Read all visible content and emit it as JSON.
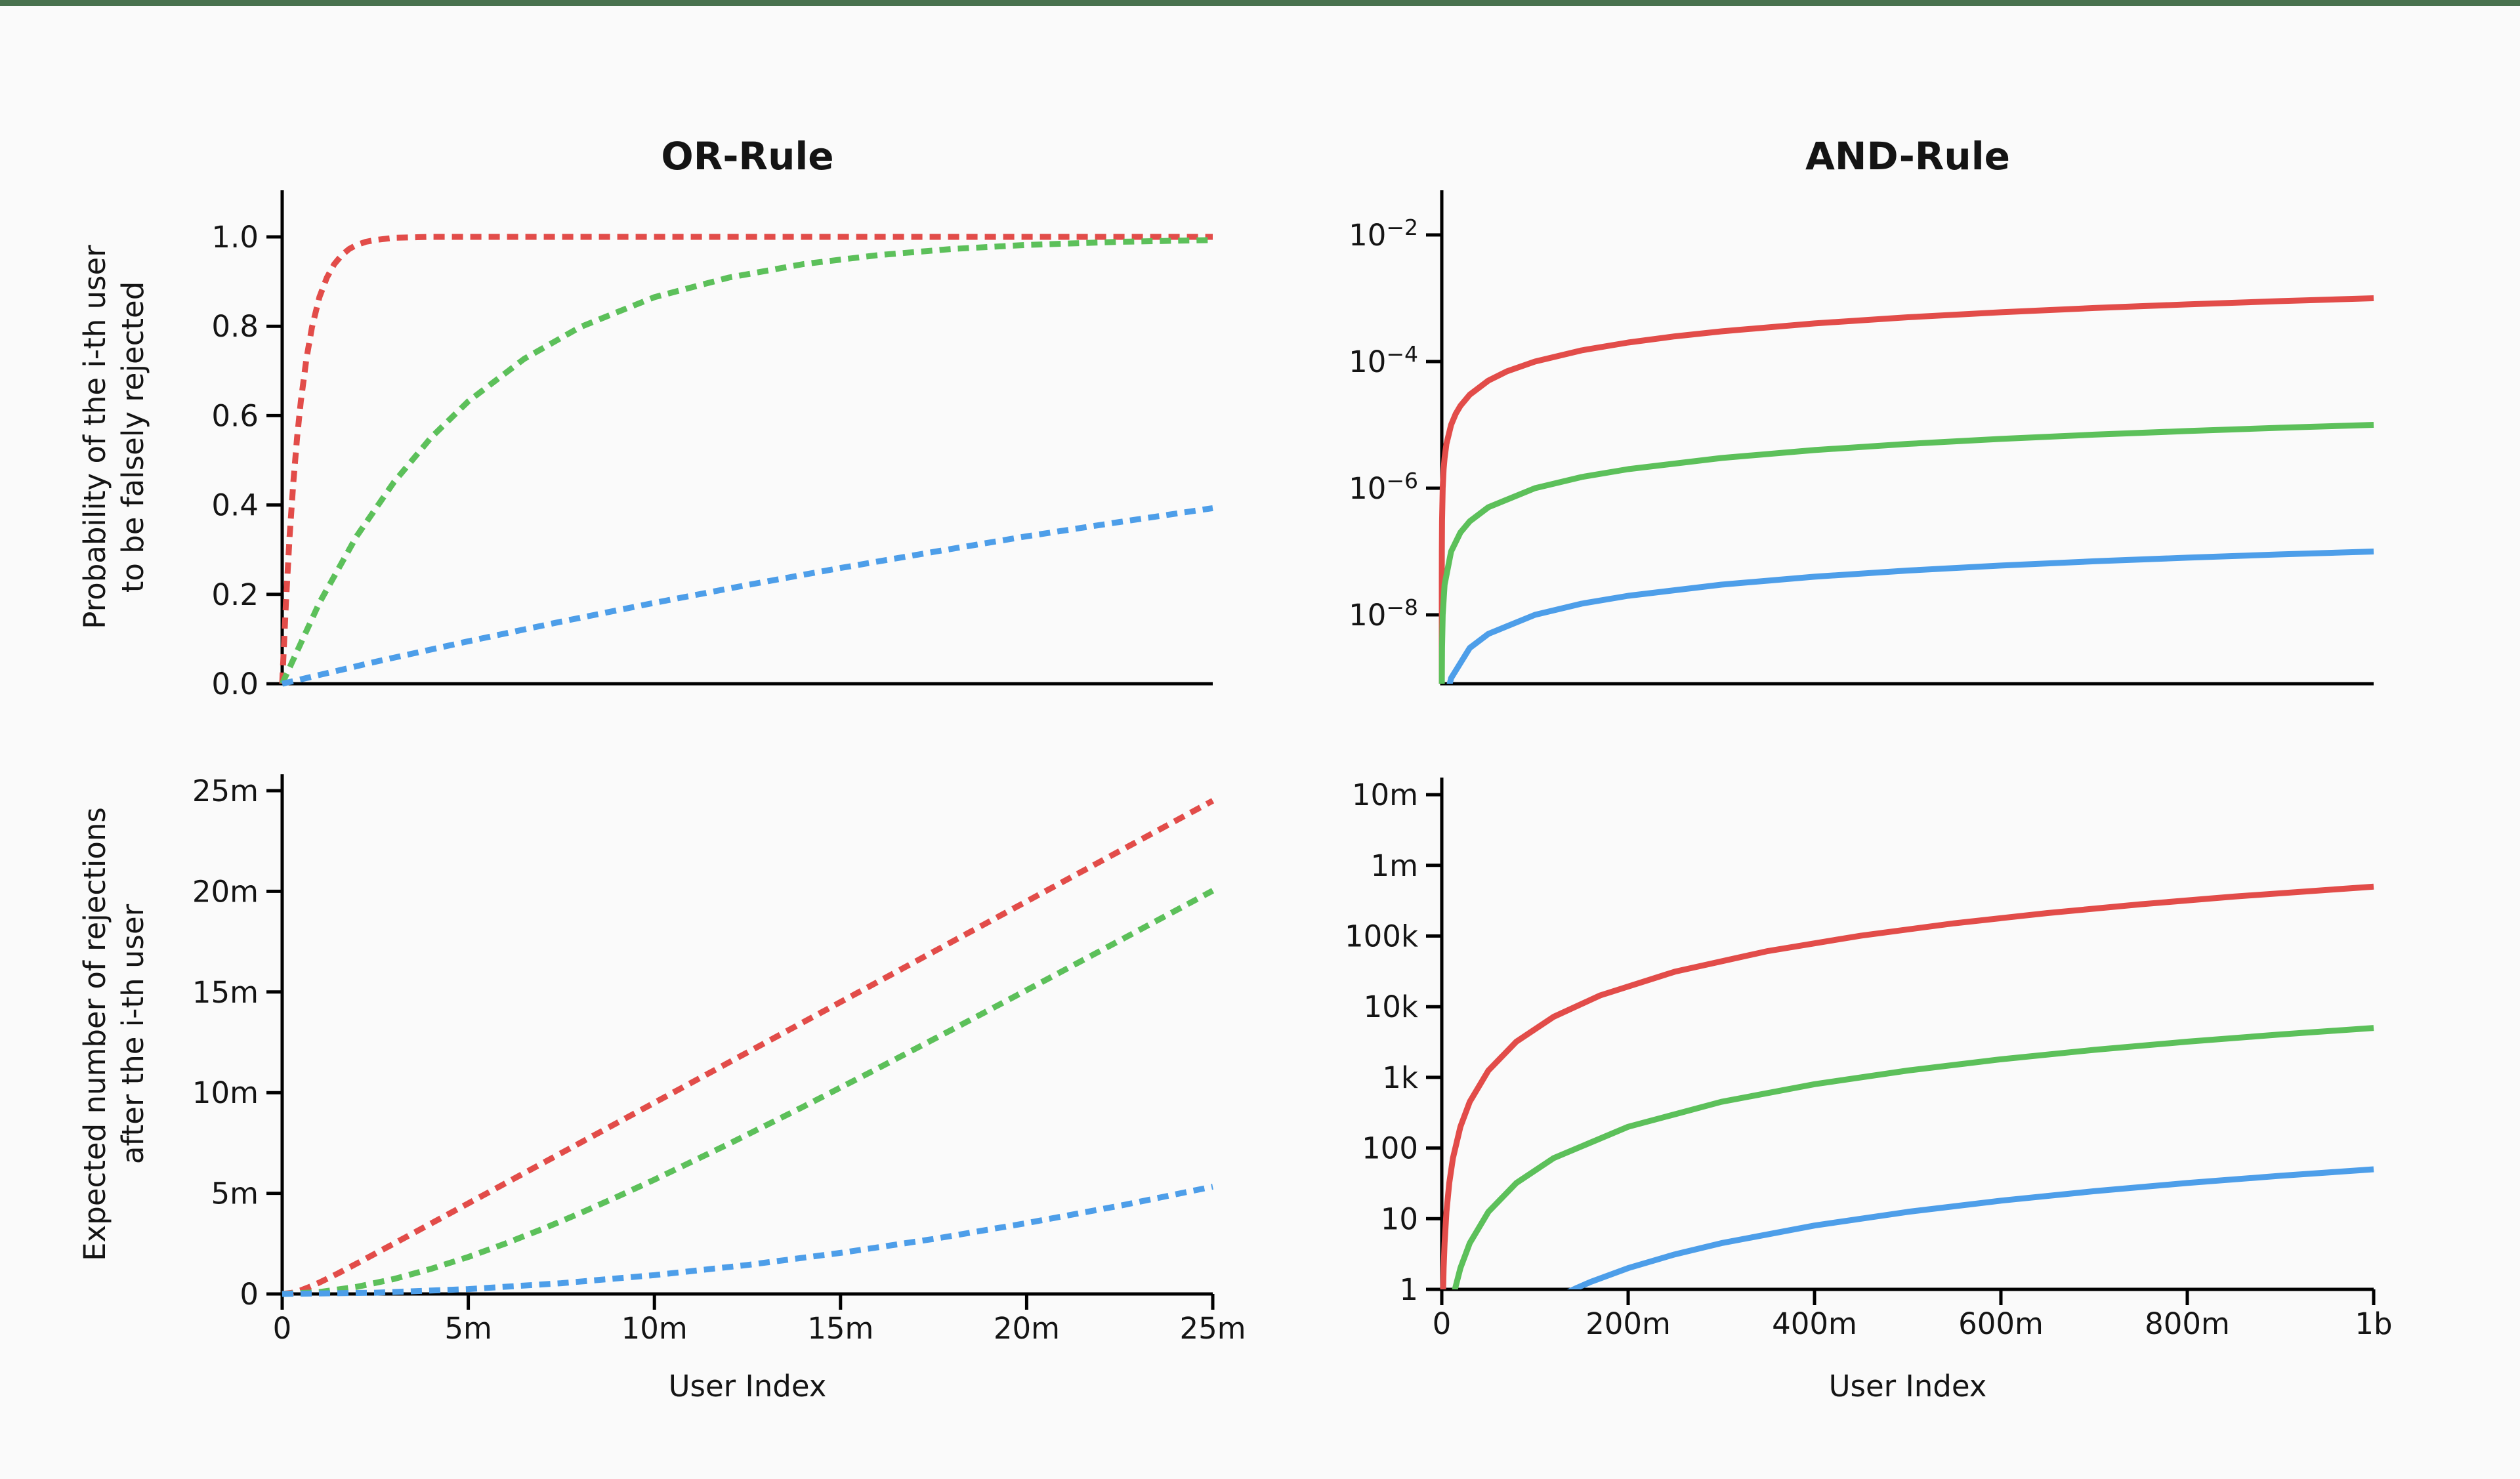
{
  "page": {
    "background_color": "#fafafa",
    "accent_bar_color": "#49724e",
    "axis_color": "#000000",
    "text_color": "#141414"
  },
  "colors": {
    "red": "#e24c49",
    "green": "#5cc05a",
    "blue": "#4d9ee9"
  },
  "chart_data": [
    {
      "id": "or-probability",
      "type": "line",
      "title": "OR-Rule",
      "xlabel": "",
      "ylabel_lines": [
        "Probability of the i-th user",
        "to be falsely rejected"
      ],
      "line_style": "dashed",
      "x_axis": {
        "scale": "linear",
        "min_users": 0,
        "max_users": 25000000,
        "unit": "millions of users",
        "tick_labels": []
      },
      "y_axis": {
        "scale": "linear",
        "min": 0.0,
        "max": 1.0,
        "tick_labels": [
          "1.0",
          "0.8",
          "0.6",
          "0.4",
          "0.2",
          "0.0"
        ],
        "tick_values": [
          1.0,
          0.8,
          0.6,
          0.4,
          0.2,
          0.0
        ]
      },
      "series": [
        {
          "name": "red",
          "color": "#e24c49",
          "points": [
            [
              0,
              0
            ],
            [
              0.1,
              0.181
            ],
            [
              0.2,
              0.33
            ],
            [
              0.3,
              0.451
            ],
            [
              0.4,
              0.551
            ],
            [
              0.5,
              0.632
            ],
            [
              0.65,
              0.727
            ],
            [
              0.8,
              0.798
            ],
            [
              1,
              0.865
            ],
            [
              1.2,
              0.909
            ],
            [
              1.4,
              0.939
            ],
            [
              1.6,
              0.959
            ],
            [
              1.8,
              0.973
            ],
            [
              2,
              0.982
            ],
            [
              2.25,
              0.989
            ],
            [
              2.5,
              0.993
            ],
            [
              3,
              0.998
            ],
            [
              3.5,
              0.999
            ],
            [
              4,
              1
            ],
            [
              25,
              1
            ]
          ]
        },
        {
          "name": "green",
          "color": "#5cc05a",
          "points": [
            [
              0,
              0
            ],
            [
              1,
              0.181
            ],
            [
              2,
              0.33
            ],
            [
              3,
              0.451
            ],
            [
              4,
              0.551
            ],
            [
              5,
              0.632
            ],
            [
              6.5,
              0.727
            ],
            [
              8,
              0.798
            ],
            [
              10,
              0.865
            ],
            [
              12,
              0.909
            ],
            [
              14,
              0.939
            ],
            [
              16,
              0.959
            ],
            [
              18,
              0.973
            ],
            [
              20,
              0.982
            ],
            [
              22.5,
              0.989
            ],
            [
              25,
              0.993
            ]
          ]
        },
        {
          "name": "blue",
          "color": "#4d9ee9",
          "points": [
            [
              0,
              0
            ],
            [
              2.5,
              0.049
            ],
            [
              5,
              0.095
            ],
            [
              7.5,
              0.139
            ],
            [
              10,
              0.181
            ],
            [
              12.5,
              0.221
            ],
            [
              15,
              0.259
            ],
            [
              17.5,
              0.295
            ],
            [
              20,
              0.33
            ],
            [
              22.5,
              0.362
            ],
            [
              25,
              0.393
            ]
          ]
        }
      ]
    },
    {
      "id": "and-probability",
      "type": "line",
      "title": "AND-Rule",
      "xlabel": "",
      "ylabel_lines": [],
      "line_style": "solid",
      "x_axis": {
        "scale": "linear",
        "min_users": 0,
        "max_users": 1000000000,
        "unit": "millions of users",
        "tick_labels": []
      },
      "y_axis": {
        "scale": "log",
        "tick_base": "10",
        "tick_exponents": [
          "−2",
          "−4",
          "−6",
          "−8"
        ]
      },
      "series": [
        {
          "name": "red",
          "color": "#e24c49",
          "points": [
            [
              0.0005,
              5e-10
            ],
            [
              0.001,
              1e-09
            ],
            [
              0.003,
              3e-09
            ],
            [
              0.01,
              1e-08
            ],
            [
              0.03,
              3e-08
            ],
            [
              0.1,
              1e-07
            ],
            [
              0.3,
              3e-07
            ],
            [
              1,
              1e-06
            ],
            [
              2,
              2e-06
            ],
            [
              3,
              3e-06
            ],
            [
              5,
              5e-06
            ],
            [
              10,
              1e-05
            ],
            [
              15,
              1.5e-05
            ],
            [
              20,
              2e-05
            ],
            [
              30,
              3e-05
            ],
            [
              50,
              5e-05
            ],
            [
              70,
              7e-05
            ],
            [
              100,
              0.0001
            ],
            [
              150,
              0.00015
            ],
            [
              200,
              0.0002
            ],
            [
              250,
              0.00025
            ],
            [
              300,
              0.0003
            ],
            [
              400,
              0.0004
            ],
            [
              500,
              0.0005
            ],
            [
              600,
              0.0006
            ],
            [
              700,
              0.0007
            ],
            [
              800,
              0.0008
            ],
            [
              900,
              0.0009
            ],
            [
              1000,
              0.001
            ]
          ]
        },
        {
          "name": "green",
          "color": "#5cc05a",
          "points": [
            [
              0.05,
              5e-10
            ],
            [
              0.1,
              1e-09
            ],
            [
              0.3,
              3e-09
            ],
            [
              1,
              1e-08
            ],
            [
              3,
              3e-08
            ],
            [
              10,
              1e-07
            ],
            [
              20,
              2e-07
            ],
            [
              30,
              3e-07
            ],
            [
              50,
              5e-07
            ],
            [
              100,
              1e-06
            ],
            [
              150,
              1.5e-06
            ],
            [
              200,
              2e-06
            ],
            [
              300,
              3e-06
            ],
            [
              400,
              4e-06
            ],
            [
              500,
              5e-06
            ],
            [
              600,
              6e-06
            ],
            [
              700,
              7e-06
            ],
            [
              800,
              8e-06
            ],
            [
              900,
              9e-06
            ],
            [
              1000,
              1e-05
            ]
          ]
        },
        {
          "name": "blue",
          "color": "#4d9ee9",
          "points": [
            [
              5,
              5e-10
            ],
            [
              10,
              1e-09
            ],
            [
              30,
              3e-09
            ],
            [
              50,
              5e-09
            ],
            [
              100,
              1e-08
            ],
            [
              150,
              1.5e-08
            ],
            [
              200,
              2e-08
            ],
            [
              300,
              3e-08
            ],
            [
              400,
              4e-08
            ],
            [
              500,
              5e-08
            ],
            [
              600,
              6e-08
            ],
            [
              700,
              7e-08
            ],
            [
              800,
              8e-08
            ],
            [
              900,
              9e-08
            ],
            [
              1000,
              1e-07
            ]
          ]
        }
      ]
    },
    {
      "id": "or-expected-rejections",
      "type": "line",
      "title": "",
      "xlabel": "User Index",
      "ylabel_lines": [
        "Expected number of rejections",
        "after the i-th user"
      ],
      "line_style": "dashed",
      "x_axis": {
        "scale": "linear",
        "unit": "millions of users",
        "tick_labels": [
          "0",
          "5m",
          "10m",
          "15m",
          "20m",
          "25m"
        ],
        "tick_values": [
          0,
          5,
          10,
          15,
          20,
          25
        ]
      },
      "y_axis": {
        "scale": "linear",
        "unit": "millions of rejections",
        "tick_labels": [
          "25m",
          "20m",
          "15m",
          "10m",
          "5m",
          "0"
        ],
        "tick_values": [
          25,
          20,
          15,
          10,
          5,
          0
        ]
      },
      "series": [
        {
          "name": "red",
          "color": "#e24c49",
          "points": [
            [
              0,
              0
            ],
            [
              0.25,
              0.053
            ],
            [
              0.5,
              0.184
            ],
            [
              0.75,
              0.362
            ],
            [
              1,
              0.568
            ],
            [
              1.5,
              1.025
            ],
            [
              2,
              1.509
            ],
            [
              2.5,
              2.003
            ],
            [
              3,
              2.501
            ],
            [
              4,
              3.5
            ],
            [
              5,
              4.5
            ],
            [
              7.5,
              7
            ],
            [
              10,
              9.5
            ],
            [
              12.5,
              12
            ],
            [
              15,
              14.5
            ],
            [
              17.5,
              17
            ],
            [
              20,
              19.5
            ],
            [
              22.5,
              22
            ],
            [
              25,
              24.5
            ]
          ]
        },
        {
          "name": "green",
          "color": "#5cc05a",
          "points": [
            [
              0,
              0
            ],
            [
              1,
              0.094
            ],
            [
              2,
              0.352
            ],
            [
              3,
              0.744
            ],
            [
              4,
              1.247
            ],
            [
              5,
              1.839
            ],
            [
              6,
              2.506
            ],
            [
              7,
              3.233
            ],
            [
              8,
              4.01
            ],
            [
              9,
              4.826
            ],
            [
              10,
              5.677
            ],
            [
              12,
              7.454
            ],
            [
              14,
              9.304
            ],
            [
              16,
              11.204
            ],
            [
              18,
              13.136
            ],
            [
              20,
              15.092
            ],
            [
              22.5,
              17.556
            ],
            [
              25,
              20.034
            ]
          ]
        },
        {
          "name": "blue",
          "color": "#4d9ee9",
          "points": [
            [
              0,
              0
            ],
            [
              2.5,
              0.061
            ],
            [
              5,
              0.242
            ],
            [
              7.5,
              0.533
            ],
            [
              10,
              0.937
            ],
            [
              12.5,
              1.44
            ],
            [
              15,
              2.04
            ],
            [
              17.5,
              2.73
            ],
            [
              20,
              3.52
            ],
            [
              22.5,
              4.38
            ],
            [
              25,
              5.33
            ]
          ]
        }
      ]
    },
    {
      "id": "and-expected-rejections",
      "type": "line",
      "title": "",
      "xlabel": "User Index",
      "ylabel_lines": [],
      "line_style": "solid",
      "x_axis": {
        "scale": "linear",
        "unit": "millions of users",
        "tick_labels": [
          "0",
          "200m",
          "400m",
          "600m",
          "800m",
          "1b"
        ],
        "tick_values": [
          0,
          200,
          400,
          600,
          800,
          1000
        ]
      },
      "y_axis": {
        "scale": "log",
        "tick_labels": [
          "10m",
          "1m",
          "100k",
          "10k",
          "1k",
          "100",
          "10",
          "1"
        ],
        "tick_values": [
          10000000,
          1000000,
          100000,
          10000,
          1000,
          100,
          10,
          1
        ]
      },
      "series": [
        {
          "name": "red",
          "color": "#e24c49",
          "points": [
            [
              1.3,
              0.85
            ],
            [
              1.45,
              1.05
            ],
            [
              2,
              2
            ],
            [
              3,
              4.5
            ],
            [
              5,
              12.5
            ],
            [
              8,
              32
            ],
            [
              12,
              72
            ],
            [
              20,
              200
            ],
            [
              30,
              450
            ],
            [
              50,
              1250
            ],
            [
              80,
              3200
            ],
            [
              120,
              7200
            ],
            [
              170,
              14450
            ],
            [
              250,
              31250
            ],
            [
              350,
              61250
            ],
            [
              450,
              101250
            ],
            [
              550,
              151250
            ],
            [
              650,
              211250
            ],
            [
              750,
              281250
            ],
            [
              850,
              361250
            ],
            [
              1000,
              500000
            ]
          ]
        },
        {
          "name": "green",
          "color": "#5cc05a",
          "points": [
            [
              13,
              0.845
            ],
            [
              14.5,
              1.051
            ],
            [
              20,
              2
            ],
            [
              30,
              4.5
            ],
            [
              50,
              12.5
            ],
            [
              80,
              32
            ],
            [
              120,
              72
            ],
            [
              200,
              200
            ],
            [
              300,
              450
            ],
            [
              400,
              800
            ],
            [
              500,
              1250
            ],
            [
              600,
              1800
            ],
            [
              700,
              2450
            ],
            [
              800,
              3200
            ],
            [
              900,
              4050
            ],
            [
              1000,
              5000
            ]
          ]
        },
        {
          "name": "blue",
          "color": "#4d9ee9",
          "points": [
            [
              135,
              0.911
            ],
            [
              145,
              1.051
            ],
            [
              160,
              1.28
            ],
            [
              200,
              2
            ],
            [
              250,
              3.125
            ],
            [
              300,
              4.5
            ],
            [
              400,
              8
            ],
            [
              500,
              12.5
            ],
            [
              600,
              18
            ],
            [
              700,
              24.5
            ],
            [
              800,
              32
            ],
            [
              900,
              40.5
            ],
            [
              1000,
              50
            ]
          ]
        }
      ]
    }
  ]
}
